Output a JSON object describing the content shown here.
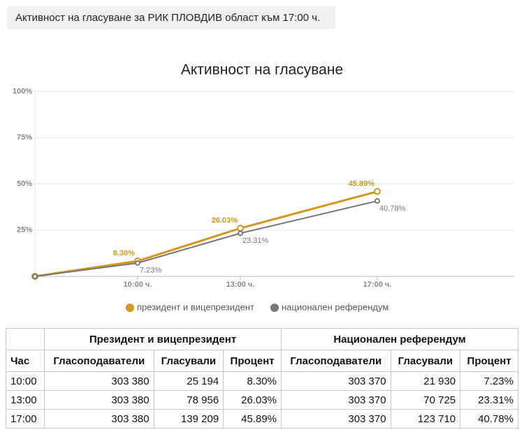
{
  "header": {
    "title": "Активност на гласуване за РИК ПЛОВДИВ област към 17:00 ч."
  },
  "chart_data": {
    "type": "line",
    "title": "Активност на гласуване",
    "x": [
      7,
      10,
      13,
      17
    ],
    "xlim": [
      7,
      21
    ],
    "xticks": [
      {
        "value": 10,
        "label": "10:00 ч."
      },
      {
        "value": 13,
        "label": "13:00 ч."
      },
      {
        "value": 17,
        "label": "17:00 ч."
      }
    ],
    "ylim": [
      0,
      100
    ],
    "yticks": [
      {
        "value": 25,
        "label": "25%"
      },
      {
        "value": 50,
        "label": "50%"
      },
      {
        "value": 75,
        "label": "75%"
      },
      {
        "value": 100,
        "label": "100%"
      }
    ],
    "grid": true,
    "legend": "bottom",
    "series": [
      {
        "name": "президент и вицепрезидент",
        "color": "#d4961f",
        "values": [
          0,
          8.3,
          26.03,
          45.89
        ],
        "value_labels": [
          null,
          "8.30%",
          "26.03%",
          "45.89%"
        ]
      },
      {
        "name": "национален референдум",
        "color": "#777777",
        "values": [
          0,
          7.23,
          23.31,
          40.78
        ],
        "value_labels": [
          null,
          "7.23%",
          "23.31%",
          "40.78%"
        ]
      }
    ]
  },
  "table": {
    "groups": [
      "Президент и вицепрезидент",
      "Национален референдум"
    ],
    "columns": [
      "Час",
      "Гласоподаватели",
      "Гласували",
      "Процент",
      "Гласоподаватели",
      "Гласували",
      "Процент"
    ],
    "rows": [
      [
        "10:00",
        "303 380",
        "25 194",
        "8.30%",
        "303 370",
        "21 930",
        "7.23%"
      ],
      [
        "13:00",
        "303 380",
        "78 956",
        "26.03%",
        "303 370",
        "70 725",
        "23.31%"
      ],
      [
        "17:00",
        "303 380",
        "139 209",
        "45.89%",
        "303 370",
        "123 710",
        "40.78%"
      ]
    ]
  }
}
